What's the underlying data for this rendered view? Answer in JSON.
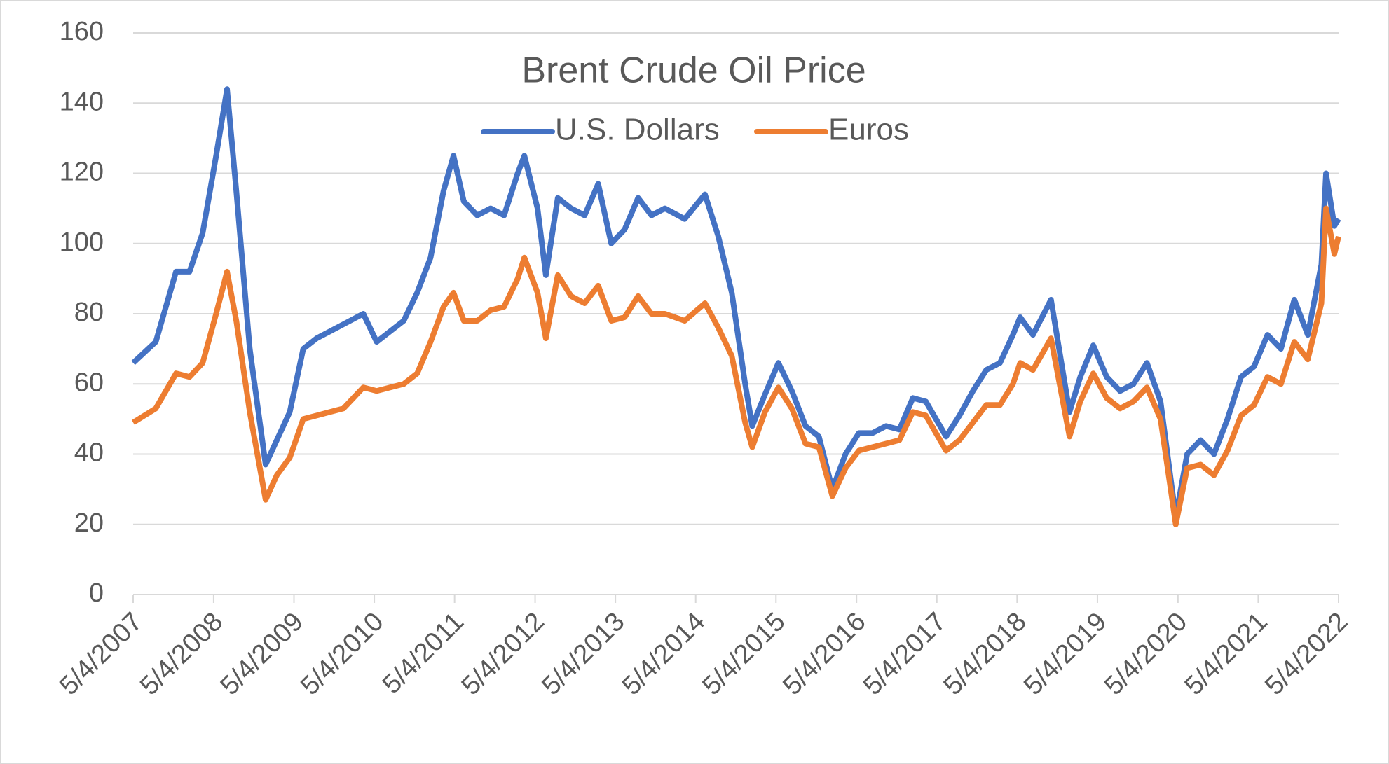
{
  "chart_data": {
    "type": "line",
    "title": "Brent Crude Oil Price",
    "x": [
      "2007-05-04",
      "2007-08-15",
      "2007-11-15",
      "2008-01-15",
      "2008-03-15",
      "2008-05-15",
      "2008-07-04",
      "2008-08-15",
      "2008-10-15",
      "2008-12-26",
      "2009-02-15",
      "2009-04-15",
      "2009-06-15",
      "2009-08-15",
      "2009-10-15",
      "2009-12-15",
      "2010-03-15",
      "2010-05-15",
      "2010-07-15",
      "2010-09-15",
      "2010-11-15",
      "2011-01-15",
      "2011-03-15",
      "2011-04-29",
      "2011-06-15",
      "2011-08-15",
      "2011-10-15",
      "2011-12-15",
      "2012-02-15",
      "2012-03-16",
      "2012-05-15",
      "2012-06-22",
      "2012-08-15",
      "2012-10-15",
      "2012-12-15",
      "2013-02-15",
      "2013-04-15",
      "2013-06-15",
      "2013-08-15",
      "2013-10-15",
      "2013-12-15",
      "2014-03-15",
      "2014-06-15",
      "2014-08-15",
      "2014-10-15",
      "2014-12-15",
      "2015-01-16",
      "2015-03-15",
      "2015-05-15",
      "2015-07-15",
      "2015-09-15",
      "2015-11-15",
      "2016-01-15",
      "2016-03-15",
      "2016-05-15",
      "2016-07-15",
      "2016-09-15",
      "2016-11-15",
      "2017-01-15",
      "2017-03-15",
      "2017-06-15",
      "2017-08-15",
      "2017-10-15",
      "2017-12-15",
      "2018-02-15",
      "2018-04-15",
      "2018-05-18",
      "2018-07-15",
      "2018-10-05",
      "2018-12-28",
      "2019-02-15",
      "2019-04-15",
      "2019-06-15",
      "2019-08-15",
      "2019-10-15",
      "2019-12-15",
      "2020-02-15",
      "2020-04-24",
      "2020-06-15",
      "2020-08-15",
      "2020-10-15",
      "2020-12-15",
      "2021-02-15",
      "2021-04-15",
      "2021-06-15",
      "2021-08-15",
      "2021-10-15",
      "2021-12-15",
      "2022-02-15",
      "2022-03-08",
      "2022-04-15",
      "2022-05-04"
    ],
    "series": [
      {
        "name": "U.S. Dollars",
        "color": "#4472c4",
        "values": [
          66,
          72,
          92,
          92,
          103,
          125,
          144,
          115,
          70,
          37,
          44,
          52,
          70,
          73,
          75,
          77,
          80,
          72,
          75,
          78,
          86,
          96,
          115,
          125,
          112,
          108,
          110,
          108,
          120,
          125,
          110,
          91,
          113,
          110,
          108,
          117,
          100,
          104,
          113,
          108,
          110,
          107,
          114,
          102,
          86,
          60,
          48,
          57,
          66,
          58,
          48,
          45,
          30,
          40,
          46,
          46,
          48,
          47,
          56,
          55,
          45,
          51,
          58,
          64,
          66,
          74,
          79,
          74,
          84,
          52,
          62,
          71,
          62,
          58,
          60,
          66,
          55,
          22,
          40,
          44,
          40,
          50,
          62,
          65,
          74,
          70,
          84,
          74,
          94,
          120,
          105,
          107
        ]
      },
      {
        "name": "Euros",
        "color": "#ed7d31",
        "values": [
          49,
          53,
          63,
          62,
          66,
          80,
          92,
          78,
          52,
          27,
          34,
          39,
          50,
          51,
          52,
          53,
          59,
          58,
          59,
          60,
          63,
          72,
          82,
          86,
          78,
          78,
          81,
          82,
          90,
          96,
          86,
          73,
          91,
          85,
          83,
          88,
          78,
          79,
          85,
          80,
          80,
          78,
          83,
          76,
          68,
          49,
          42,
          52,
          59,
          53,
          43,
          42,
          28,
          36,
          41,
          42,
          43,
          44,
          52,
          51,
          41,
          44,
          49,
          54,
          54,
          60,
          66,
          64,
          73,
          45,
          55,
          63,
          56,
          53,
          55,
          59,
          50,
          20,
          36,
          37,
          34,
          41,
          51,
          54,
          62,
          60,
          72,
          67,
          83,
          110,
          97,
          102
        ]
      }
    ],
    "xlim": [
      "2007-05-04",
      "2022-05-04"
    ],
    "xticks": [
      {
        "value": "2007-05-04",
        "label": "5/4/2007"
      },
      {
        "value": "2008-05-04",
        "label": "5/4/2008"
      },
      {
        "value": "2009-05-04",
        "label": "5/4/2009"
      },
      {
        "value": "2010-05-04",
        "label": "5/4/2010"
      },
      {
        "value": "2011-05-04",
        "label": "5/4/2011"
      },
      {
        "value": "2012-05-04",
        "label": "5/4/2012"
      },
      {
        "value": "2013-05-04",
        "label": "5/4/2013"
      },
      {
        "value": "2014-05-04",
        "label": "5/4/2014"
      },
      {
        "value": "2015-05-04",
        "label": "5/4/2015"
      },
      {
        "value": "2016-05-04",
        "label": "5/4/2016"
      },
      {
        "value": "2017-05-04",
        "label": "5/4/2017"
      },
      {
        "value": "2018-05-04",
        "label": "5/4/2018"
      },
      {
        "value": "2019-05-04",
        "label": "5/4/2019"
      },
      {
        "value": "2020-05-04",
        "label": "5/4/2020"
      },
      {
        "value": "2021-05-04",
        "label": "5/4/2021"
      },
      {
        "value": "2022-05-04",
        "label": "5/4/2022"
      }
    ],
    "ylim": [
      0,
      160
    ],
    "yticks": [
      0,
      20,
      40,
      60,
      80,
      100,
      120,
      140,
      160
    ],
    "grid": true,
    "legend": "top"
  }
}
